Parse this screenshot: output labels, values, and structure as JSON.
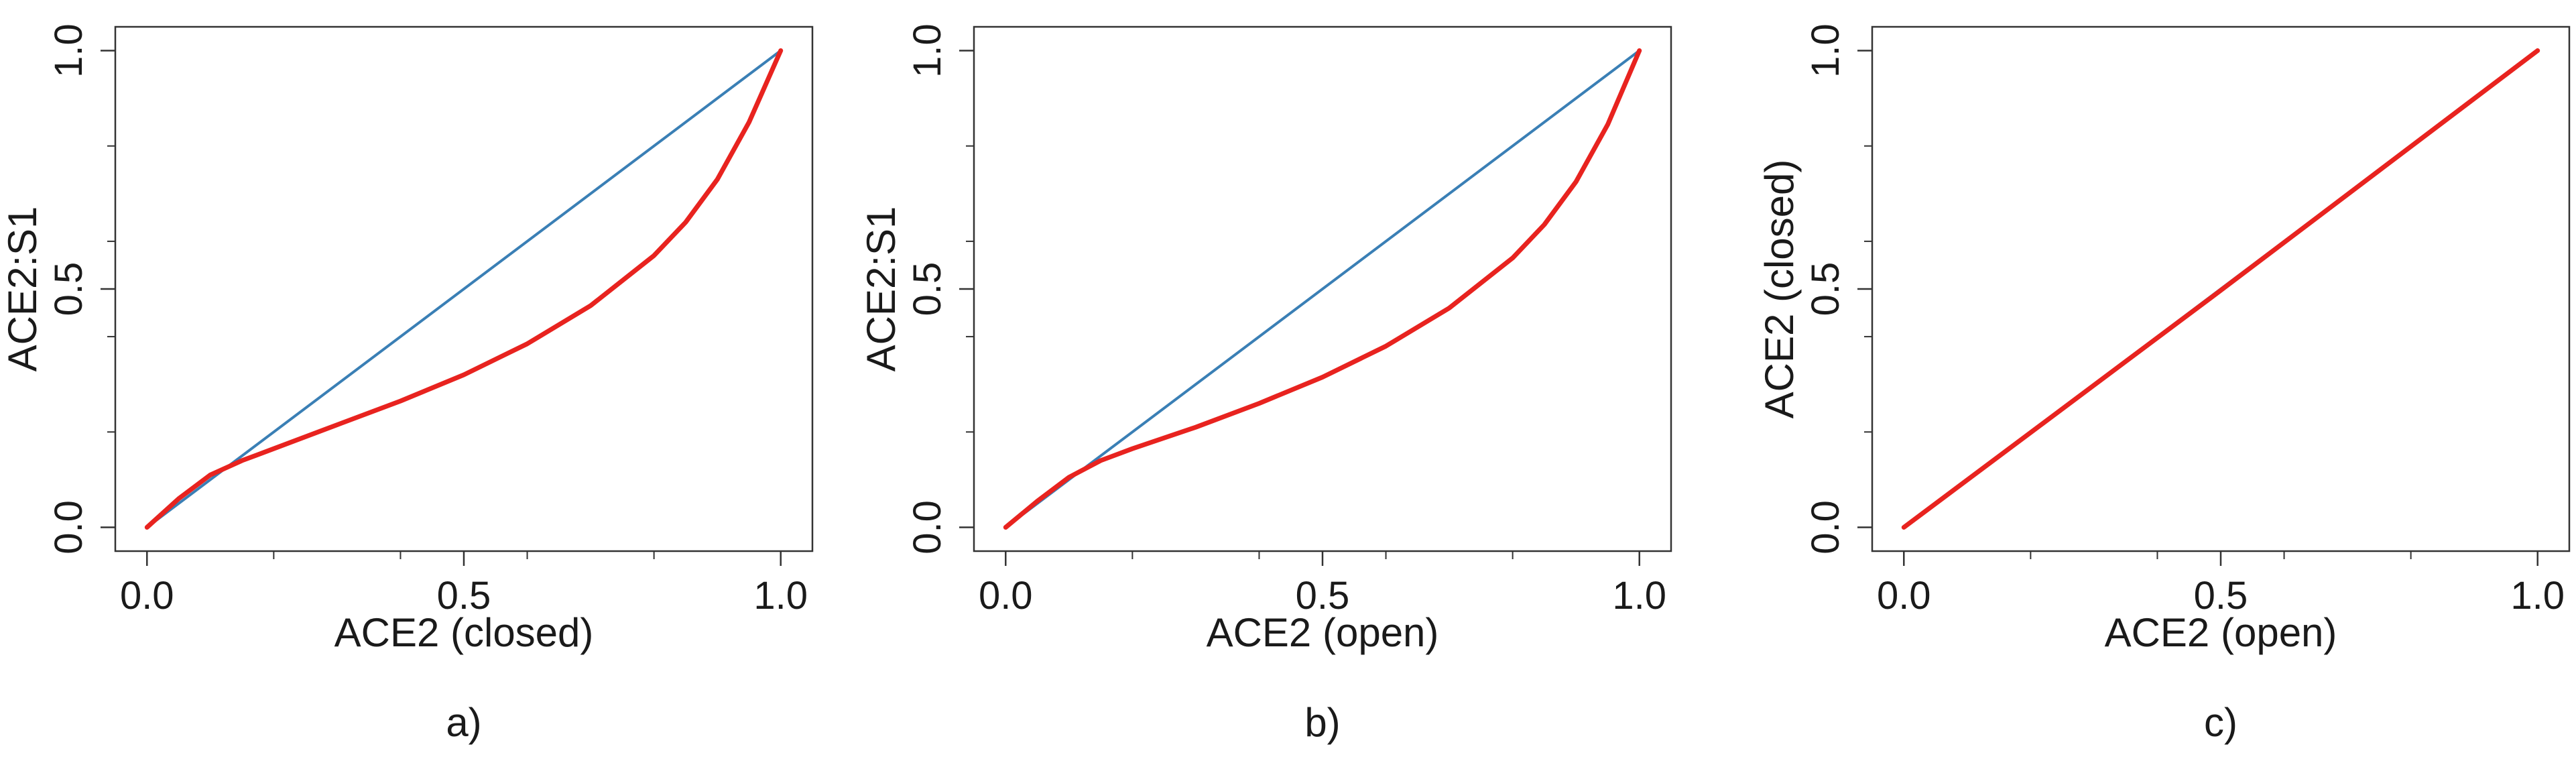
{
  "chart_data": [
    {
      "type": "line",
      "panel_label": "a)",
      "title": "",
      "xlabel": "ACE2 (closed)",
      "ylabel": "ACE2:S1",
      "xlim": [
        -0.05,
        1.05
      ],
      "ylim": [
        -0.05,
        1.05
      ],
      "xticks": [
        0.0,
        0.5,
        1.0
      ],
      "xtick_labels": [
        "0.0",
        "0.5",
        "1.0"
      ],
      "yticks": [
        0.0,
        0.5,
        1.0
      ],
      "ytick_labels": [
        "0.0",
        "0.5",
        "1.0"
      ],
      "minor_ticks": [
        0.2,
        0.4,
        0.6,
        0.8
      ],
      "grid": false,
      "series": [
        {
          "color": "#3a7fb5",
          "x": [
            0.0,
            1.0
          ],
          "y": [
            0.0,
            1.0
          ]
        },
        {
          "color": "#e8231f",
          "x": [
            0.0,
            0.05,
            0.1,
            0.15,
            0.2,
            0.3,
            0.4,
            0.5,
            0.6,
            0.7,
            0.8,
            0.85,
            0.9,
            0.95,
            1.0
          ],
          "y": [
            0.0,
            0.06,
            0.11,
            0.14,
            0.165,
            0.215,
            0.265,
            0.32,
            0.385,
            0.465,
            0.57,
            0.64,
            0.73,
            0.85,
            1.0
          ]
        }
      ]
    },
    {
      "type": "line",
      "panel_label": "b)",
      "title": "",
      "xlabel": "ACE2 (open)",
      "ylabel": "ACE2:S1",
      "xlim": [
        -0.05,
        1.05
      ],
      "ylim": [
        -0.05,
        1.05
      ],
      "xticks": [
        0.0,
        0.5,
        1.0
      ],
      "xtick_labels": [
        "0.0",
        "0.5",
        "1.0"
      ],
      "yticks": [
        0.0,
        0.5,
        1.0
      ],
      "ytick_labels": [
        "0.0",
        "0.5",
        "1.0"
      ],
      "minor_ticks": [
        0.2,
        0.4,
        0.6,
        0.8
      ],
      "grid": false,
      "series": [
        {
          "color": "#3a7fb5",
          "x": [
            0.0,
            1.0
          ],
          "y": [
            0.0,
            1.0
          ]
        },
        {
          "color": "#e8231f",
          "x": [
            0.0,
            0.05,
            0.1,
            0.15,
            0.2,
            0.3,
            0.4,
            0.5,
            0.6,
            0.7,
            0.8,
            0.85,
            0.9,
            0.95,
            1.0
          ],
          "y": [
            0.0,
            0.055,
            0.105,
            0.14,
            0.165,
            0.21,
            0.26,
            0.315,
            0.38,
            0.46,
            0.565,
            0.635,
            0.725,
            0.845,
            1.0
          ]
        }
      ]
    },
    {
      "type": "line",
      "panel_label": "c)",
      "title": "",
      "xlabel": "ACE2 (open)",
      "ylabel": "ACE2 (closed)",
      "xlim": [
        -0.05,
        1.05
      ],
      "ylim": [
        -0.05,
        1.05
      ],
      "xticks": [
        0.0,
        0.5,
        1.0
      ],
      "xtick_labels": [
        "0.0",
        "0.5",
        "1.0"
      ],
      "yticks": [
        0.0,
        0.5,
        1.0
      ],
      "ytick_labels": [
        "0.0",
        "0.5",
        "1.0"
      ],
      "minor_ticks": [
        0.2,
        0.4,
        0.6,
        0.8
      ],
      "grid": false,
      "series": [
        {
          "color": "#3a7fb5",
          "x": [
            0.0,
            1.0
          ],
          "y": [
            0.0,
            1.0
          ]
        },
        {
          "color": "#e8231f",
          "x": [
            0.0,
            0.5,
            1.0
          ],
          "y": [
            0.0,
            0.497,
            1.0
          ]
        }
      ]
    }
  ]
}
